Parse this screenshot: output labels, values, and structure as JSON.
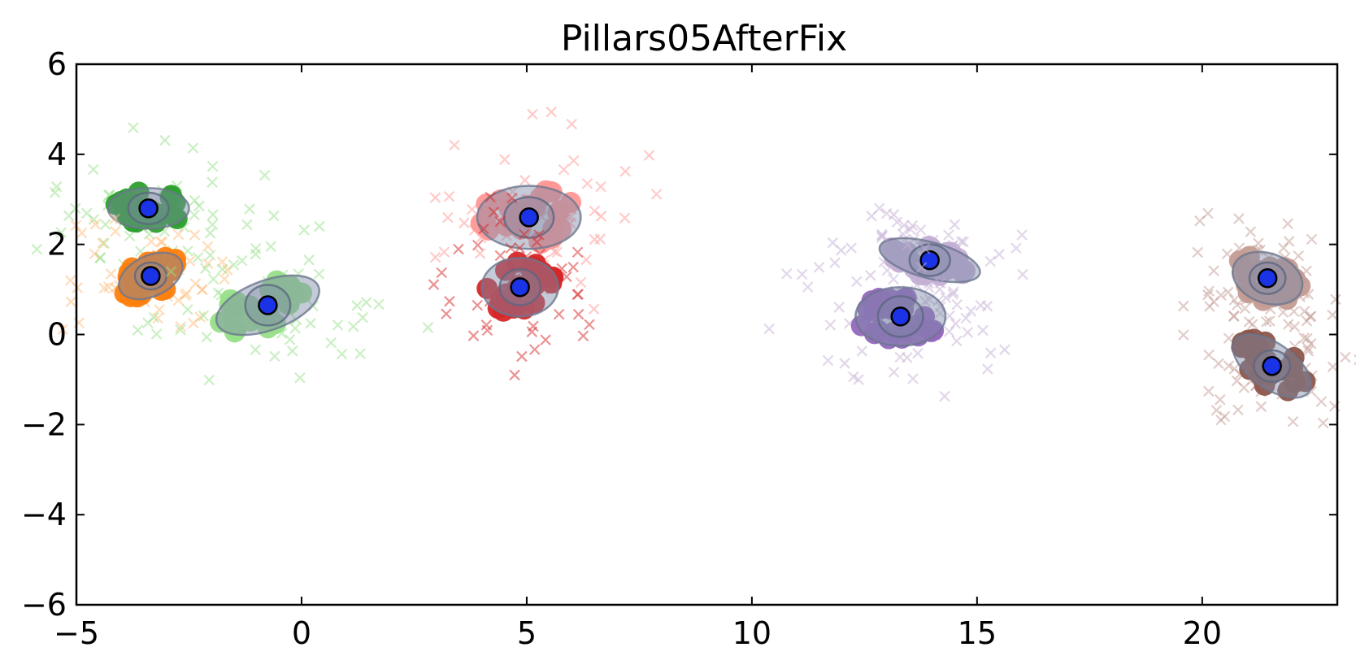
{
  "chart_data": {
    "type": "scatter",
    "title": "Pillars05AfterFix",
    "xlabel": "",
    "ylabel": "",
    "xlim": [
      -5,
      23
    ],
    "ylim": [
      -6,
      6
    ],
    "x_ticks": [
      -5,
      0,
      5,
      10,
      15,
      20
    ],
    "x_tick_labels": [
      "−5",
      "0",
      "5",
      "10",
      "15",
      "20"
    ],
    "y_ticks": [
      -6,
      -4,
      -2,
      0,
      2,
      4,
      6
    ],
    "y_tick_labels": [
      "−6",
      "−4",
      "−2",
      "0",
      "2",
      "4",
      "6"
    ],
    "grid": false,
    "legend": "none",
    "center_marker_color": "#1a33e6",
    "clusters": [
      {
        "name": "green",
        "color": "#2ca02c",
        "light_color": "#98df8a",
        "center": [
          -3.4,
          2.8
        ],
        "ellipse": {
          "rx": 0.9,
          "ry": 0.45,
          "angle": 0
        },
        "inner_ellipse": {
          "rx": 0.45,
          "ry": 0.35
        }
      },
      {
        "name": "orange",
        "color": "#ff7f0e",
        "light_color": "#ffbb78",
        "center": [
          -3.35,
          1.3
        ],
        "ellipse": {
          "rx": 0.75,
          "ry": 0.45,
          "angle": 25
        },
        "inner_ellipse": {
          "rx": 0.35,
          "ry": 0.3
        }
      },
      {
        "name": "light-green",
        "color": "#98df8a",
        "light_color": "#98df8a",
        "center": [
          -0.75,
          0.65
        ],
        "ellipse": {
          "rx": 1.2,
          "ry": 0.55,
          "angle": 20
        },
        "inner_ellipse": {
          "rx": 0.5,
          "ry": 0.45
        }
      },
      {
        "name": "light-red",
        "color": "#ff9896",
        "light_color": "#ff9896",
        "center": [
          5.05,
          2.6
        ],
        "ellipse": {
          "rx": 1.15,
          "ry": 0.7,
          "angle": 0
        },
        "inner_ellipse": {
          "rx": 0.55,
          "ry": 0.45
        }
      },
      {
        "name": "red",
        "color": "#d62728",
        "light_color": "#d62728",
        "center": [
          4.85,
          1.05
        ],
        "ellipse": {
          "rx": 0.85,
          "ry": 0.65,
          "angle": 0
        },
        "inner_ellipse": {
          "rx": 0.45,
          "ry": 0.4
        }
      },
      {
        "name": "light-purple",
        "color": "#c5b0d5",
        "light_color": "#c5b0d5",
        "center": [
          13.95,
          1.65
        ],
        "ellipse": {
          "rx": 1.15,
          "ry": 0.4,
          "angle": -15
        },
        "inner_ellipse": {
          "rx": 0.45,
          "ry": 0.35
        }
      },
      {
        "name": "purple",
        "color": "#9467bd",
        "light_color": "#c5b0d5",
        "center": [
          13.3,
          0.4
        ],
        "ellipse": {
          "rx": 1.0,
          "ry": 0.65,
          "angle": 0
        },
        "inner_ellipse": {
          "rx": 0.5,
          "ry": 0.45
        }
      },
      {
        "name": "light-brown",
        "color": "#c49c94",
        "light_color": "#c49c94",
        "center": [
          21.45,
          1.25
        ],
        "ellipse": {
          "rx": 0.8,
          "ry": 0.55,
          "angle": -20
        },
        "inner_ellipse": {
          "rx": 0.4,
          "ry": 0.35
        }
      },
      {
        "name": "brown",
        "color": "#8c564b",
        "light_color": "#c49c94",
        "center": [
          21.55,
          -0.7
        ],
        "ellipse": {
          "rx": 1.0,
          "ry": 0.5,
          "angle": -35
        },
        "inner_ellipse": {
          "rx": 0.4,
          "ry": 0.35
        }
      }
    ]
  }
}
